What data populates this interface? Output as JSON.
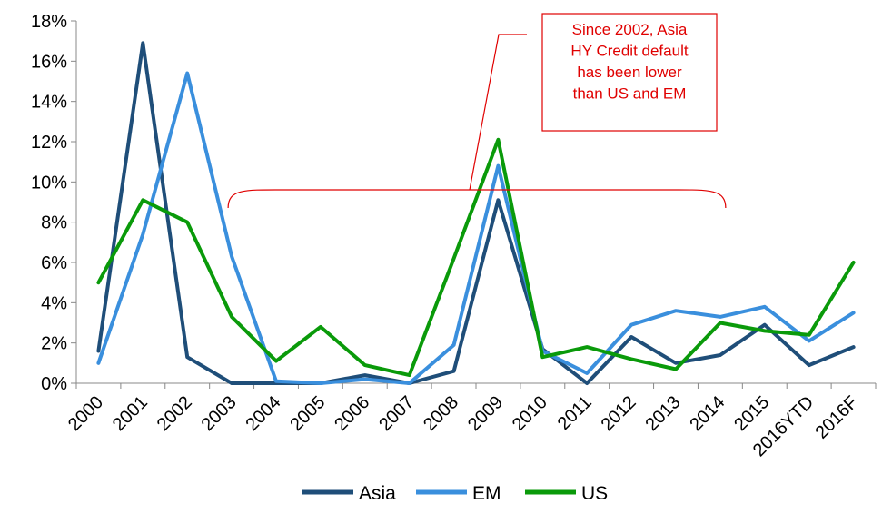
{
  "chart_data": {
    "type": "line",
    "categories": [
      "2000",
      "2001",
      "2002",
      "2003",
      "2004",
      "2005",
      "2006",
      "2007",
      "2008",
      "2009",
      "2010",
      "2011",
      "2012",
      "2013",
      "2014",
      "2015",
      "2016YTD",
      "2016F"
    ],
    "series": [
      {
        "name": "Asia",
        "color": "#1f4e79",
        "values": [
          1.6,
          16.9,
          1.3,
          0.0,
          0.0,
          0.0,
          0.4,
          0.0,
          0.6,
          9.1,
          1.7,
          0.0,
          2.3,
          1.0,
          1.4,
          2.9,
          0.9,
          1.8
        ]
      },
      {
        "name": "EM",
        "color": "#3a8fdd",
        "values": [
          1.0,
          7.4,
          15.4,
          6.3,
          0.1,
          0.0,
          0.2,
          0.0,
          1.9,
          10.8,
          1.6,
          0.5,
          2.9,
          3.6,
          3.3,
          3.8,
          2.1,
          3.5
        ]
      },
      {
        "name": "US",
        "color": "#0a9a0a",
        "values": [
          5.0,
          9.1,
          8.0,
          3.3,
          1.1,
          2.8,
          0.9,
          0.4,
          6.2,
          12.1,
          1.3,
          1.8,
          1.2,
          0.7,
          3.0,
          2.6,
          2.4,
          6.0
        ]
      }
    ],
    "yticks": [
      "0%",
      "2%",
      "4%",
      "6%",
      "8%",
      "10%",
      "12%",
      "14%",
      "16%",
      "18%"
    ],
    "ylim": [
      0,
      18
    ],
    "grid": false,
    "legend_position": "bottom",
    "annotation": {
      "lines": [
        "Since 2002, Asia",
        "HY Credit default",
        "has been lower",
        "than US and EM"
      ],
      "color": "#e00000"
    }
  }
}
